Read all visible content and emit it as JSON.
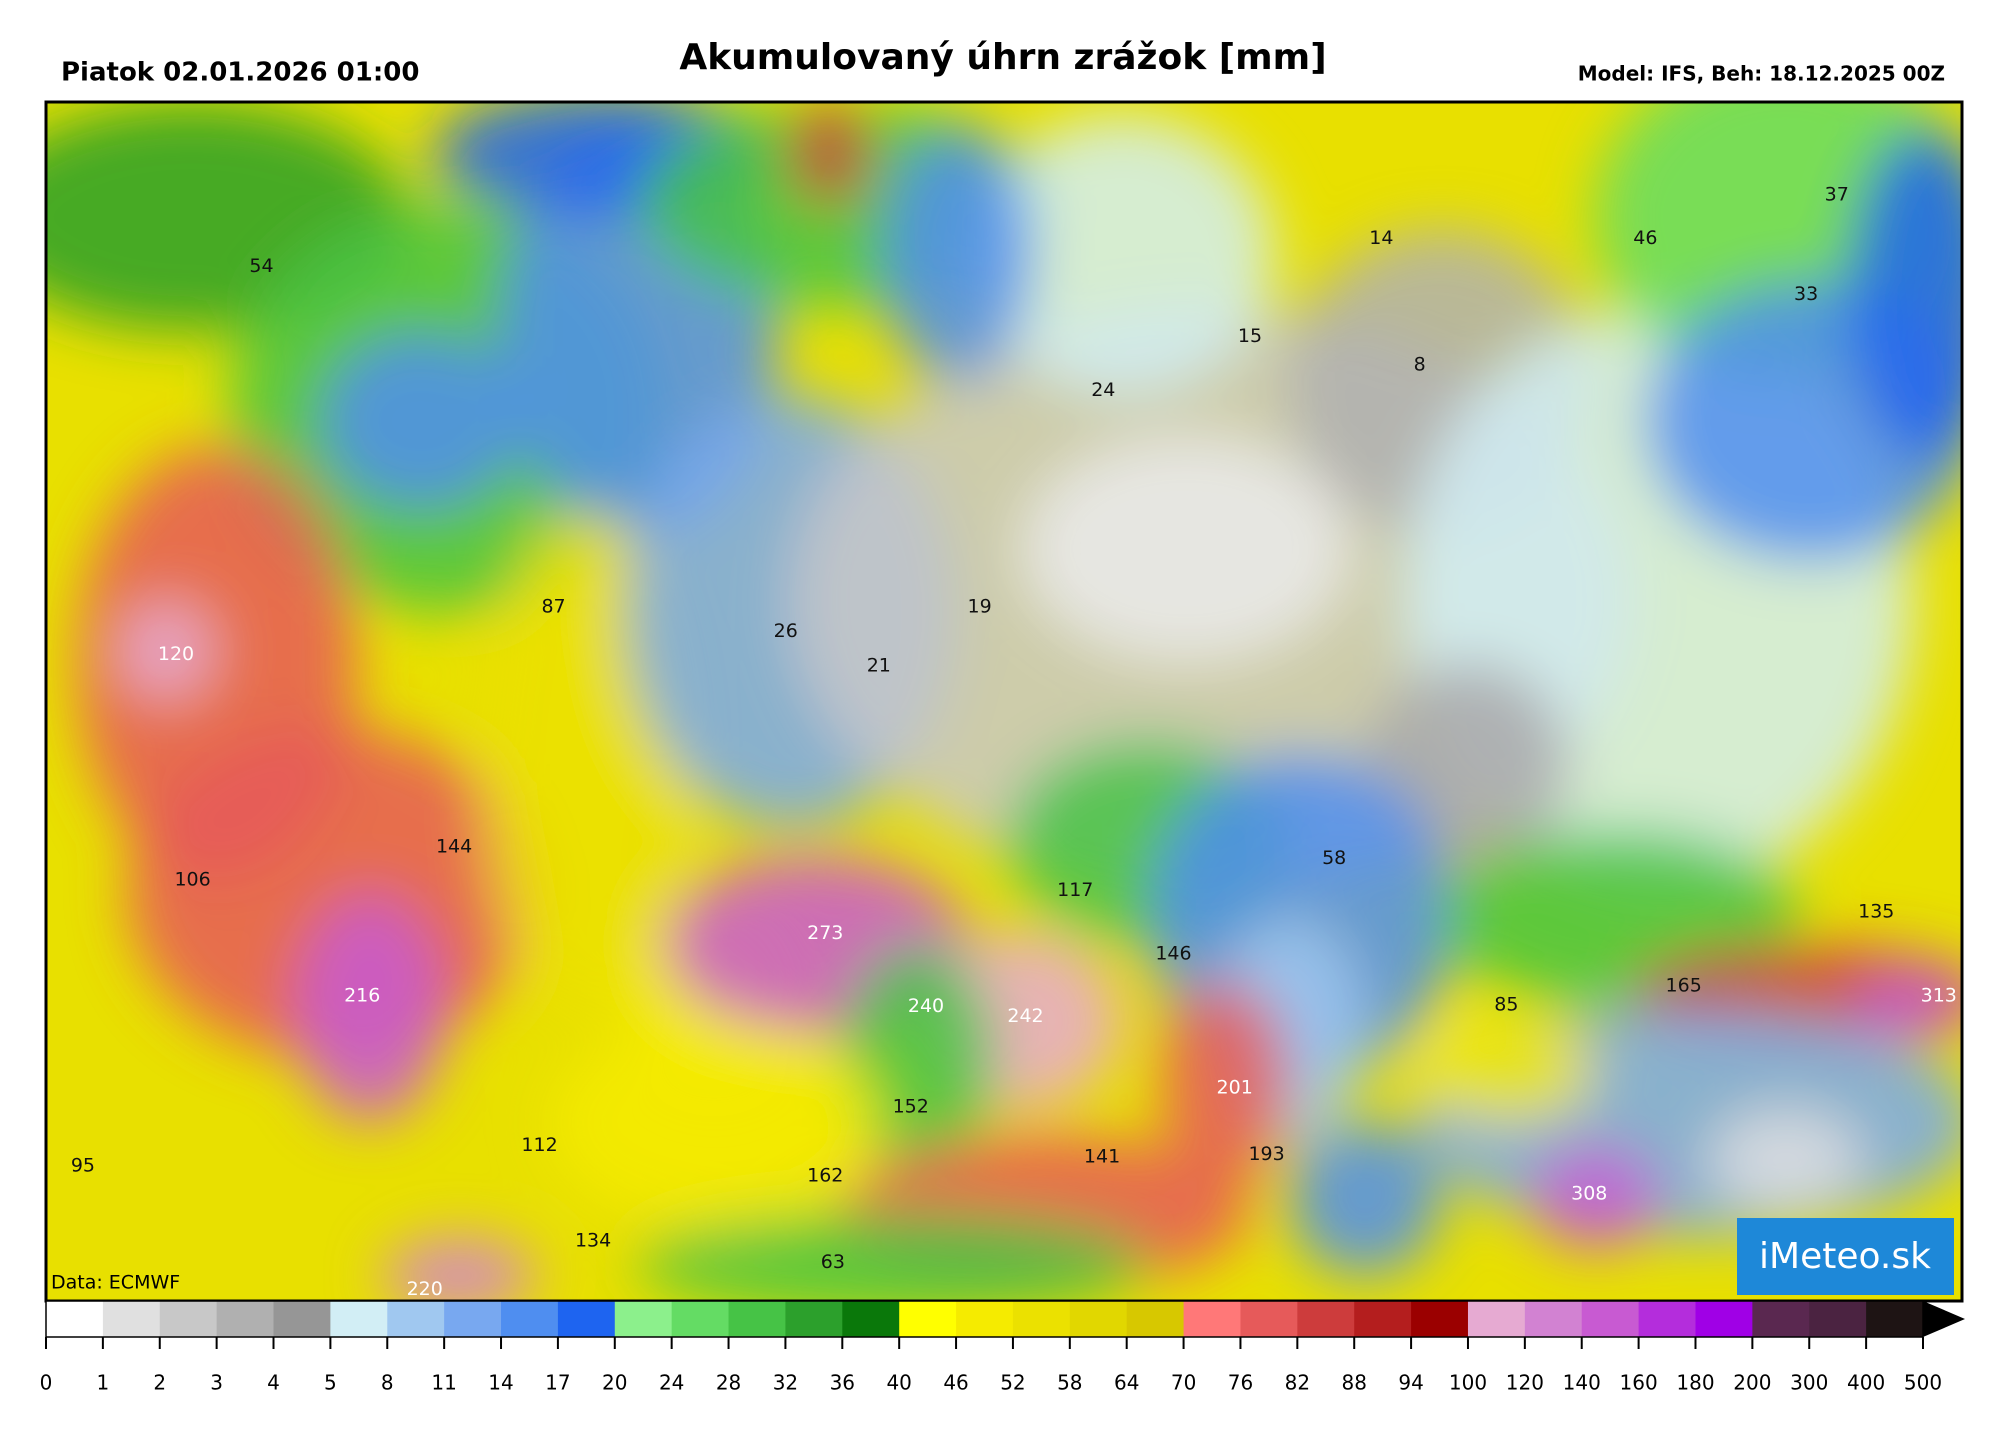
{
  "header": {
    "left": "Piatok 02.01.2026 01:00",
    "title": "Akumulovaný úhrn zrážok [mm]",
    "right": "Model: IFS, Beh: 18.12.2025 00Z"
  },
  "map": {
    "source": "Data: ECMWF",
    "logo": "iMeteo.sk",
    "labels": [
      54,
      37,
      46,
      14,
      33,
      15,
      8,
      24,
      87,
      120,
      19,
      26,
      21,
      144,
      106,
      58,
      117,
      273,
      135,
      216,
      146,
      240,
      242,
      165,
      313,
      85,
      201,
      152,
      112,
      141,
      193,
      95,
      162,
      308,
      134,
      63,
      220
    ]
  },
  "legend": {
    "ticks": [
      0,
      1,
      2,
      3,
      4,
      5,
      8,
      11,
      14,
      17,
      20,
      24,
      28,
      32,
      36,
      40,
      46,
      52,
      58,
      64,
      70,
      76,
      82,
      88,
      94,
      100,
      120,
      140,
      160,
      180,
      200,
      300,
      400,
      500
    ],
    "colors": [
      "#ffffff",
      "#e0e0e0",
      "#c8c8c8",
      "#b0b0b0",
      "#969696",
      "#d2eef5",
      "#a0c8f0",
      "#78a8f0",
      "#4f8ef0",
      "#1e64f0",
      "#8cf08c",
      "#64dc64",
      "#46c346",
      "#2ca02c",
      "#0a780a",
      "#ffff00",
      "#f5eb00",
      "#ebe100",
      "#e1d700",
      "#d7c800",
      "#ff7878",
      "#e65a5a",
      "#cd3c3c",
      "#b41e1e",
      "#9b0000",
      "#e6aad2",
      "#d282d2",
      "#c85ad2",
      "#b42ddc",
      "#a000e6",
      "#5a2850",
      "#4b2341",
      "#1e1414"
    ]
  }
}
